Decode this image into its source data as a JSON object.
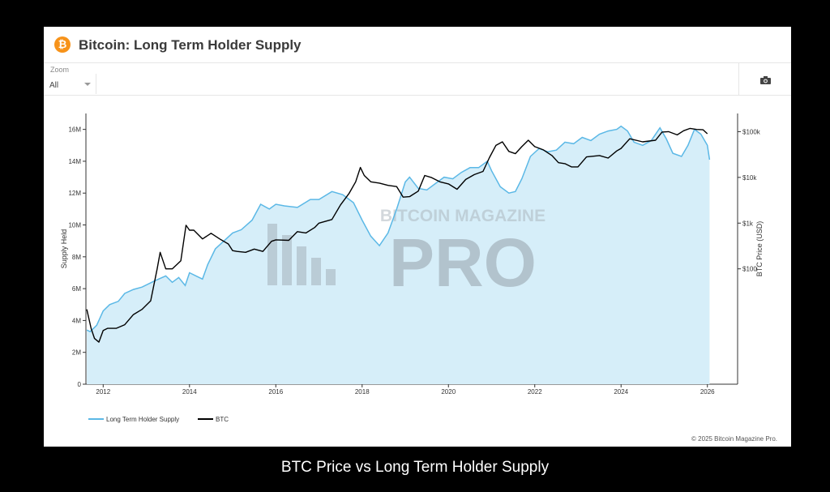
{
  "header": {
    "title": "Bitcoin: Long Term Holder Supply",
    "logo_glyph": "₿",
    "logo_color": "#f7931a"
  },
  "zoom": {
    "label": "Zoom",
    "value": "All"
  },
  "toolbar": {
    "camera_icon": "camera-icon"
  },
  "watermark": {
    "line1": "BITCOIN MAGAZINE",
    "line2": "PRO"
  },
  "credit": "© 2025 Bitcoin Magazine Pro.",
  "caption": "BTC Price vs Long Term Holder Supply",
  "colors": {
    "supply_line": "#5bb8e6",
    "supply_fill": "#d6eef9",
    "btc_line": "#000000"
  },
  "chart_data": {
    "type": "area",
    "title": "Bitcoin: Long Term Holder Supply",
    "x_ticks": [
      "2012",
      "2014",
      "2016",
      "2018",
      "2020",
      "2022",
      "2024",
      "2026"
    ],
    "x_range": [
      2011.6,
      2026.7
    ],
    "y_left": {
      "label": "Supply Held",
      "ticks": [
        "0",
        "2M",
        "4M",
        "6M",
        "8M",
        "10M",
        "12M",
        "14M",
        "16M"
      ],
      "range": [
        0,
        17000000
      ]
    },
    "y_right": {
      "label": "BTC Price (USD)",
      "scale": "log",
      "ticks": [
        "$100",
        "$1k",
        "$10k",
        "$100k"
      ],
      "range": [
        0.3,
        250000
      ]
    },
    "legend_position": "bottom-left",
    "series": [
      {
        "name": "Long Term Holder Supply",
        "axis": "left",
        "points": [
          [
            2011.62,
            3400000
          ],
          [
            2011.7,
            3300000
          ],
          [
            2011.85,
            3700000
          ],
          [
            2012.0,
            4600000
          ],
          [
            2012.15,
            5000000
          ],
          [
            2012.35,
            5200000
          ],
          [
            2012.5,
            5700000
          ],
          [
            2012.7,
            5950000
          ],
          [
            2012.9,
            6100000
          ],
          [
            2013.2,
            6500000
          ],
          [
            2013.45,
            6800000
          ],
          [
            2013.6,
            6400000
          ],
          [
            2013.75,
            6700000
          ],
          [
            2013.9,
            6200000
          ],
          [
            2014.0,
            7000000
          ],
          [
            2014.15,
            6800000
          ],
          [
            2014.3,
            6600000
          ],
          [
            2014.42,
            7500000
          ],
          [
            2014.6,
            8500000
          ],
          [
            2014.8,
            9000000
          ],
          [
            2015.0,
            9500000
          ],
          [
            2015.2,
            9700000
          ],
          [
            2015.45,
            10300000
          ],
          [
            2015.65,
            11300000
          ],
          [
            2015.85,
            11000000
          ],
          [
            2016.0,
            11300000
          ],
          [
            2016.2,
            11200000
          ],
          [
            2016.5,
            11100000
          ],
          [
            2016.8,
            11600000
          ],
          [
            2017.0,
            11600000
          ],
          [
            2017.3,
            12100000
          ],
          [
            2017.55,
            11900000
          ],
          [
            2017.8,
            11400000
          ],
          [
            2018.0,
            10300000
          ],
          [
            2018.2,
            9300000
          ],
          [
            2018.4,
            8700000
          ],
          [
            2018.6,
            9500000
          ],
          [
            2018.8,
            11000000
          ],
          [
            2019.0,
            12700000
          ],
          [
            2019.1,
            13000000
          ],
          [
            2019.3,
            12300000
          ],
          [
            2019.5,
            12200000
          ],
          [
            2019.7,
            12600000
          ],
          [
            2019.9,
            13000000
          ],
          [
            2020.1,
            12900000
          ],
          [
            2020.3,
            13300000
          ],
          [
            2020.5,
            13600000
          ],
          [
            2020.7,
            13600000
          ],
          [
            2020.9,
            14000000
          ],
          [
            2021.0,
            13400000
          ],
          [
            2021.2,
            12400000
          ],
          [
            2021.4,
            12000000
          ],
          [
            2021.55,
            12100000
          ],
          [
            2021.7,
            12900000
          ],
          [
            2021.9,
            14300000
          ],
          [
            2022.1,
            14800000
          ],
          [
            2022.3,
            14600000
          ],
          [
            2022.5,
            14700000
          ],
          [
            2022.7,
            15200000
          ],
          [
            2022.9,
            15100000
          ],
          [
            2023.1,
            15500000
          ],
          [
            2023.3,
            15300000
          ],
          [
            2023.5,
            15700000
          ],
          [
            2023.7,
            15900000
          ],
          [
            2023.9,
            16000000
          ],
          [
            2024.0,
            16200000
          ],
          [
            2024.15,
            15900000
          ],
          [
            2024.3,
            15200000
          ],
          [
            2024.5,
            15000000
          ],
          [
            2024.7,
            15300000
          ],
          [
            2024.9,
            16100000
          ],
          [
            2025.05,
            15400000
          ],
          [
            2025.2,
            14500000
          ],
          [
            2025.4,
            14300000
          ],
          [
            2025.55,
            15000000
          ],
          [
            2025.7,
            16000000
          ],
          [
            2025.85,
            15700000
          ],
          [
            2026.0,
            15000000
          ],
          [
            2026.05,
            14100000
          ]
        ]
      },
      {
        "name": "BTC",
        "axis": "right",
        "points": [
          [
            2011.62,
            13
          ],
          [
            2011.72,
            5
          ],
          [
            2011.8,
            3
          ],
          [
            2011.9,
            2.5
          ],
          [
            2012.0,
            4.5
          ],
          [
            2012.1,
            5
          ],
          [
            2012.3,
            5
          ],
          [
            2012.5,
            6
          ],
          [
            2012.7,
            10
          ],
          [
            2012.9,
            13
          ],
          [
            2013.1,
            20
          ],
          [
            2013.25,
            100
          ],
          [
            2013.32,
            230
          ],
          [
            2013.45,
            100
          ],
          [
            2013.6,
            100
          ],
          [
            2013.8,
            150
          ],
          [
            2013.92,
            900
          ],
          [
            2014.0,
            700
          ],
          [
            2014.1,
            700
          ],
          [
            2014.3,
            450
          ],
          [
            2014.5,
            600
          ],
          [
            2014.7,
            450
          ],
          [
            2014.9,
            350
          ],
          [
            2015.0,
            250
          ],
          [
            2015.1,
            240
          ],
          [
            2015.3,
            230
          ],
          [
            2015.5,
            270
          ],
          [
            2015.7,
            240
          ],
          [
            2015.9,
            400
          ],
          [
            2016.0,
            430
          ],
          [
            2016.3,
            420
          ],
          [
            2016.5,
            650
          ],
          [
            2016.7,
            610
          ],
          [
            2016.9,
            800
          ],
          [
            2017.0,
            1000
          ],
          [
            2017.3,
            1200
          ],
          [
            2017.5,
            2500
          ],
          [
            2017.7,
            4500
          ],
          [
            2017.85,
            8000
          ],
          [
            2017.96,
            16500
          ],
          [
            2018.05,
            11000
          ],
          [
            2018.2,
            8000
          ],
          [
            2018.4,
            7500
          ],
          [
            2018.6,
            6700
          ],
          [
            2018.8,
            6300
          ],
          [
            2018.95,
            3700
          ],
          [
            2019.1,
            3800
          ],
          [
            2019.3,
            5000
          ],
          [
            2019.45,
            11000
          ],
          [
            2019.6,
            10000
          ],
          [
            2019.8,
            8000
          ],
          [
            2020.0,
            7200
          ],
          [
            2020.2,
            5500
          ],
          [
            2020.4,
            9000
          ],
          [
            2020.6,
            11500
          ],
          [
            2020.8,
            13500
          ],
          [
            2020.95,
            27000
          ],
          [
            2021.1,
            50000
          ],
          [
            2021.25,
            60000
          ],
          [
            2021.4,
            37000
          ],
          [
            2021.55,
            33000
          ],
          [
            2021.7,
            47000
          ],
          [
            2021.85,
            65000
          ],
          [
            2022.0,
            47000
          ],
          [
            2022.2,
            40000
          ],
          [
            2022.4,
            30000
          ],
          [
            2022.55,
            21000
          ],
          [
            2022.7,
            20000
          ],
          [
            2022.85,
            17000
          ],
          [
            2023.0,
            17000
          ],
          [
            2023.2,
            28000
          ],
          [
            2023.5,
            30000
          ],
          [
            2023.7,
            26500
          ],
          [
            2023.9,
            38000
          ],
          [
            2024.0,
            43000
          ],
          [
            2024.2,
            70000
          ],
          [
            2024.5,
            60000
          ],
          [
            2024.8,
            65000
          ],
          [
            2024.95,
            98000
          ],
          [
            2025.1,
            100000
          ],
          [
            2025.3,
            85000
          ],
          [
            2025.45,
            105000
          ],
          [
            2025.6,
            118000
          ],
          [
            2025.75,
            112000
          ],
          [
            2025.9,
            110000
          ],
          [
            2026.0,
            90000
          ]
        ]
      }
    ]
  }
}
